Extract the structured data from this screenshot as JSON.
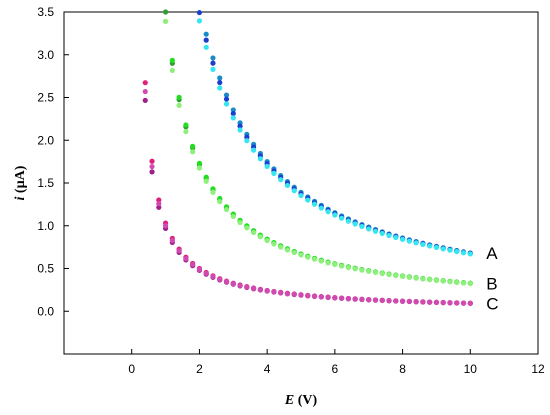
{
  "chart_data": {
    "type": "scatter",
    "xlabel": {
      "symbol": "E",
      "unit": " (V)"
    },
    "ylabel": {
      "symbol": "i",
      "unit": " (µA)"
    },
    "xlim": [
      -2,
      12
    ],
    "ylim": [
      -0.5,
      3.5
    ],
    "xticks": [
      0,
      2,
      4,
      6,
      8,
      10,
      12
    ],
    "yticks": [
      0.0,
      0.5,
      1.0,
      1.5,
      2.0,
      2.5,
      3.0,
      3.5
    ],
    "ytick_decimals": 1,
    "grid": false,
    "series": [
      {
        "name": "A",
        "model": {
          "k": 7.3,
          "n": 1.03,
          "spread": [
            0.0,
            -0.05,
            -0.11
          ]
        },
        "colors": [
          "#1a8bc8",
          "#1a3fd0",
          "#33e6f0"
        ]
      },
      {
        "name": "B",
        "model": {
          "k": 3.5,
          "n": 1.03,
          "spread": [
            0.0,
            0.02,
            -0.05
          ]
        },
        "colors": [
          "#2e9f2e",
          "#22dd22",
          "#8cf07a"
        ]
      },
      {
        "name": "C",
        "model": {
          "k": 1.0,
          "n": 1.03,
          "spread": [
            0.05,
            -0.05,
            0.0
          ]
        },
        "colors": [
          "#e0207a",
          "#a0208c",
          "#d04ab0"
        ]
      }
    ],
    "x_points": {
      "start": 0.2,
      "step": 0.2,
      "end": 10.0
    },
    "curve_labels": [
      "A",
      "B",
      "C"
    ]
  }
}
